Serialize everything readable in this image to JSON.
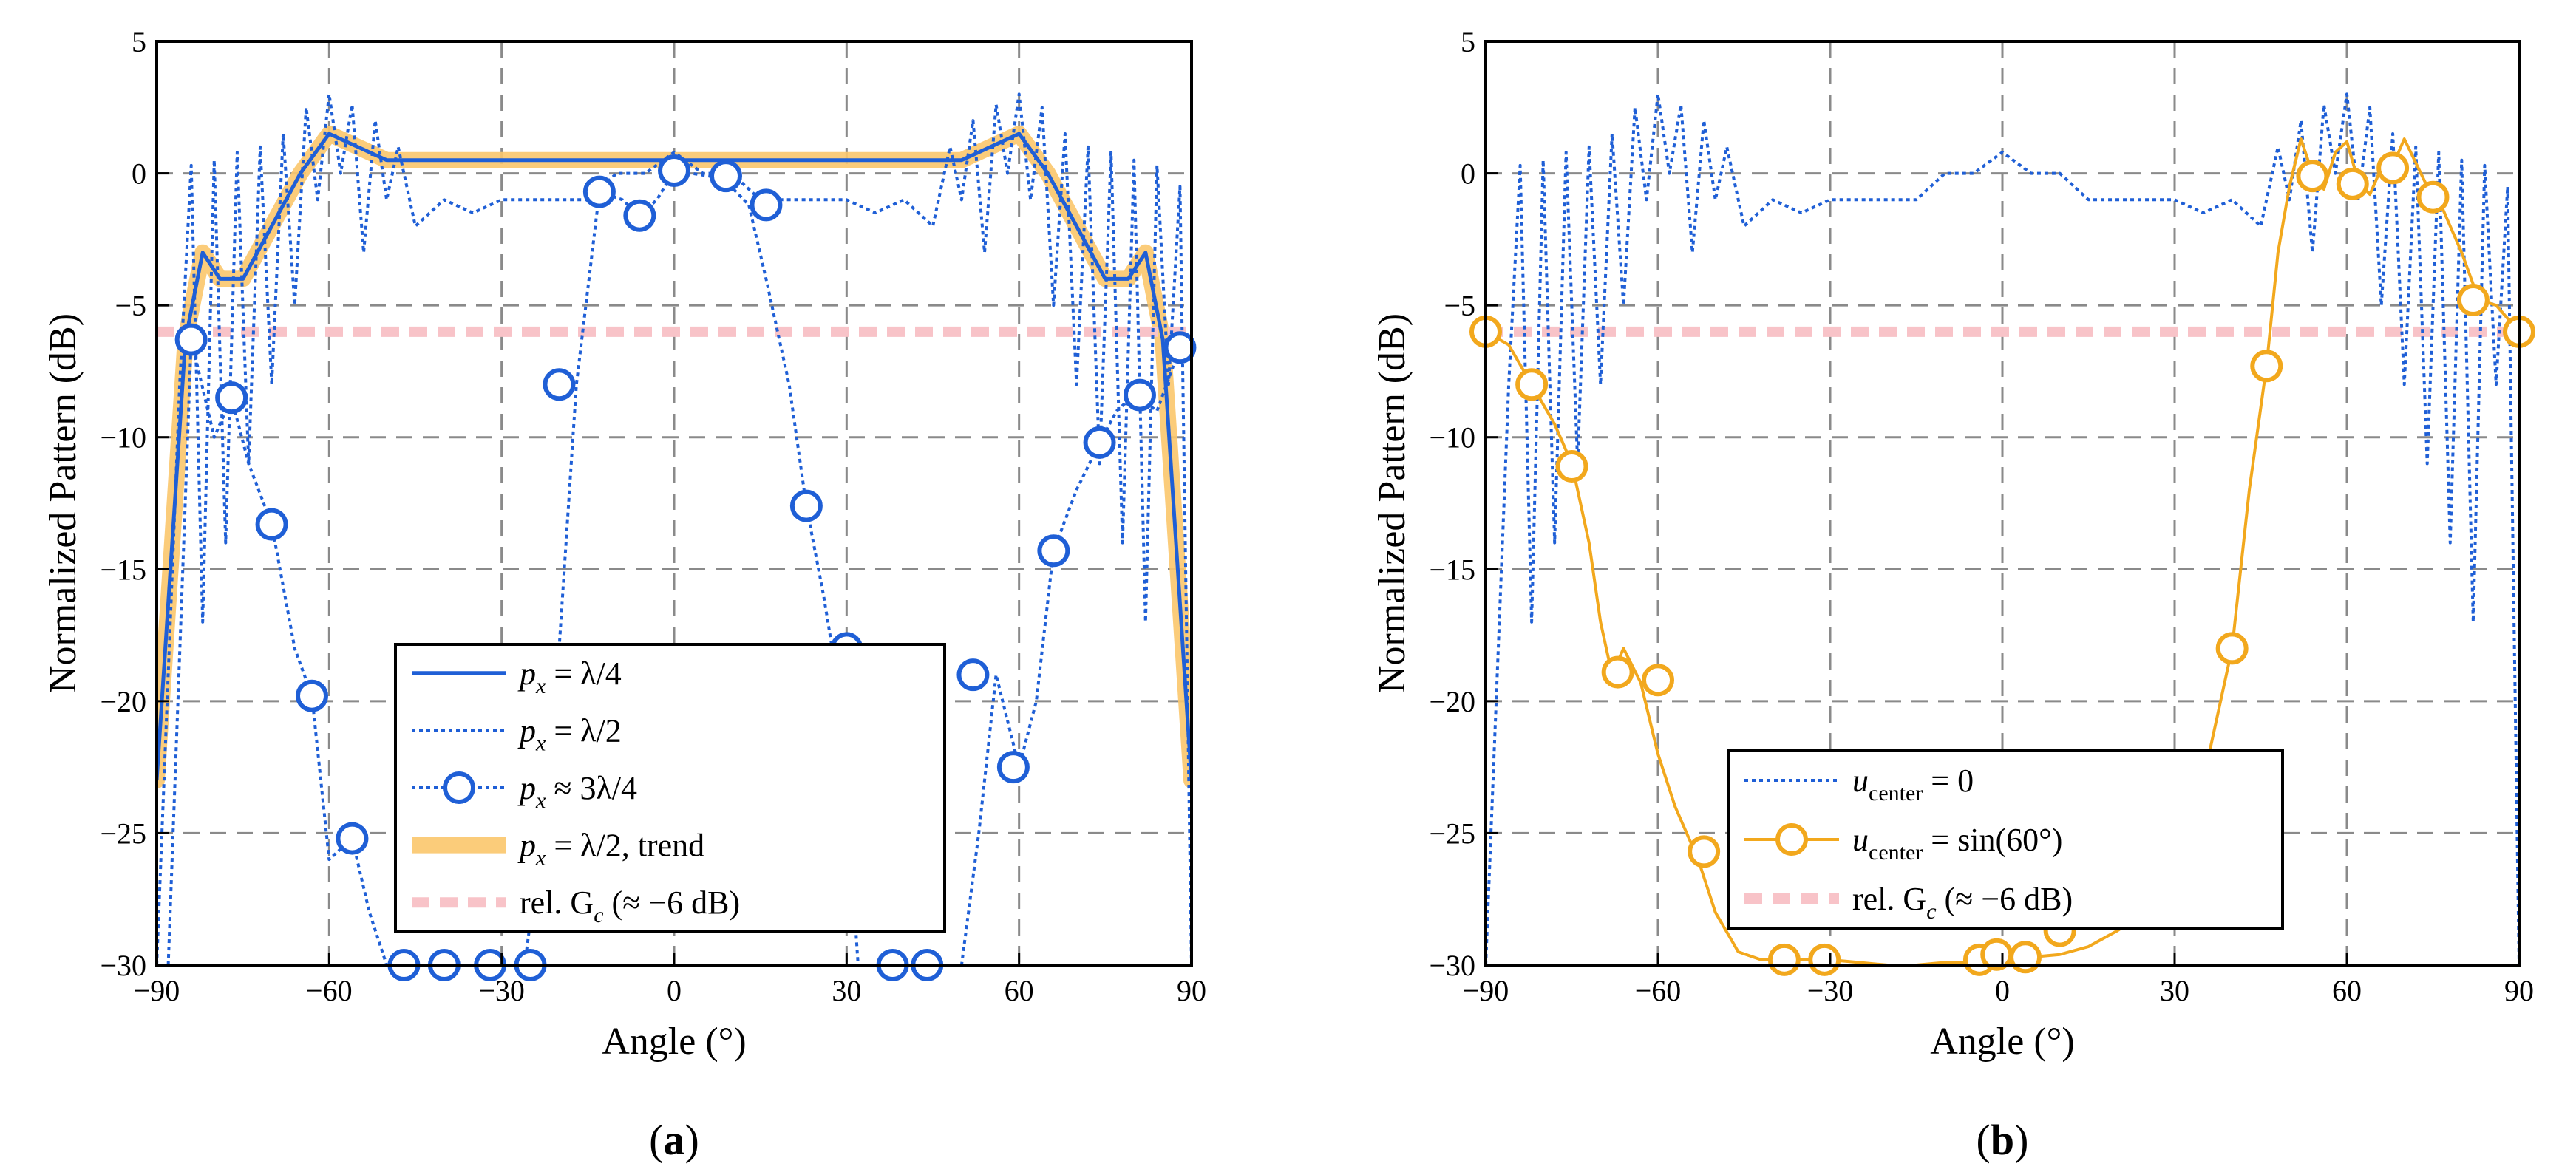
{
  "chart_data": [
    {
      "panel": "a",
      "caption": "(a)",
      "type": "line",
      "xlabel": "Angle (°)",
      "ylabel": "Normalized Pattern (dB)",
      "xlim": [
        -90,
        90
      ],
      "ylim": [
        -30,
        5
      ],
      "xticks": [
        -90,
        -60,
        -30,
        0,
        30,
        60,
        90
      ],
      "yticks": [
        -30,
        -25,
        -20,
        -15,
        -10,
        -5,
        0,
        5
      ],
      "xtick_labels": [
        "−90",
        "−60",
        "−30",
        "0",
        "30",
        "60",
        "90"
      ],
      "ytick_labels": [
        "−30",
        "−25",
        "−20",
        "−15",
        "−10",
        "−5",
        "0",
        "5"
      ],
      "grid": true,
      "legend_placement": "lower-center",
      "series": [
        {
          "name": "p_x = λ/4",
          "legend": {
            "pre": "p",
            "sub": "x",
            "post": " = λ/4"
          },
          "style": "solid",
          "color": "#1f5fd6",
          "x": [
            -90,
            -85,
            -82,
            -79,
            -75,
            -70,
            -65,
            -60,
            -55,
            -50,
            -40,
            -30,
            -20,
            -10,
            0,
            10,
            20,
            30,
            40,
            50,
            55,
            60,
            65,
            70,
            75,
            79,
            82,
            85,
            90
          ],
          "y": [
            -23,
            -6.3,
            -3,
            -4,
            -4,
            -2,
            0,
            1.5,
            1,
            0.5,
            0.5,
            0.5,
            0.5,
            0.5,
            0.5,
            0.5,
            0.5,
            0.5,
            0.5,
            0.5,
            1,
            1.5,
            0,
            -2,
            -4,
            -4,
            -3,
            -6.3,
            -23
          ]
        },
        {
          "name": "p_x = λ/2",
          "legend": {
            "pre": "p",
            "sub": "x",
            "post": " = λ/2"
          },
          "style": "dotted",
          "color": "#1f5fd6",
          "x": [
            -90,
            -86,
            -84,
            -82,
            -80,
            -78,
            -76,
            -74,
            -72,
            -70,
            -68,
            -66,
            -64,
            -62,
            -60,
            -58,
            -56,
            -54,
            -52,
            -50,
            -48,
            -45,
            -40,
            -35,
            -30,
            -25,
            -20,
            -15,
            -10,
            -5,
            0,
            5,
            10,
            15,
            20,
            25,
            30,
            35,
            40,
            45,
            48,
            50,
            52,
            54,
            56,
            58,
            60,
            62,
            64,
            66,
            68,
            70,
            72,
            74,
            76,
            78,
            80,
            82,
            84,
            86,
            88,
            90
          ],
          "y": [
            -30,
            -8,
            0.3,
            -17,
            0.5,
            -14,
            0.8,
            -11,
            1,
            -8,
            1.5,
            -5,
            2.5,
            -1,
            3,
            0,
            2.6,
            -3,
            2,
            -1,
            1,
            -2,
            -1,
            -1.5,
            -1,
            -1,
            -1,
            -1,
            0,
            0,
            0.8,
            0,
            0,
            -1,
            -1,
            -1,
            -1,
            -1.5,
            -1,
            -2,
            1,
            -1,
            2,
            -3,
            2.6,
            0,
            3,
            -1,
            2.5,
            -5,
            1.5,
            -8,
            1,
            -11,
            0.8,
            -14,
            0.5,
            -17,
            0.3,
            -8,
            -0.5,
            -30
          ]
        },
        {
          "name": "p_x ≈ 3λ/4",
          "legend": {
            "pre": "p",
            "sub": "x",
            "post": " ≈ 3λ/4"
          },
          "style": "dotted-circle",
          "color": "#1f5fd6",
          "x": [
            -88,
            -84,
            -80,
            -77,
            -74,
            -70,
            -66,
            -63,
            -60,
            -56,
            -53,
            -50,
            -47,
            -44,
            -40,
            -36,
            -32,
            -29,
            -26,
            -23,
            -20,
            -17,
            -13,
            -9,
            -6,
            -3,
            0,
            3,
            6,
            9,
            13,
            16,
            20,
            23,
            26,
            29,
            32,
            36,
            40,
            44,
            47,
            50,
            53,
            56,
            60,
            63,
            66,
            70,
            74,
            77,
            80,
            84,
            88
          ],
          "y": [
            -30,
            -6.3,
            -10,
            -8.5,
            -11,
            -13.3,
            -18,
            -19.8,
            -26,
            -25.2,
            -28,
            -30,
            -30,
            -30,
            -30,
            -30,
            -30,
            -30,
            -30,
            -25,
            -18,
            -8,
            -0.7,
            -1,
            -1.6,
            -1,
            0.1,
            0,
            -0.1,
            -0.3,
            -1.2,
            -4,
            -8,
            -12.6,
            -16,
            -20,
            -30,
            -30,
            -30,
            -30,
            -30,
            -30,
            -25,
            -19,
            -22.5,
            -20,
            -14.3,
            -12,
            -10.2,
            -9,
            -8.4,
            -9,
            -6.6
          ],
          "markers_x": [
            -84,
            -77,
            -70,
            -63,
            -56,
            -47,
            -40,
            -32,
            -25,
            -20,
            -13,
            -6,
            0,
            9,
            16,
            23,
            30,
            38,
            44,
            52,
            59,
            66,
            74,
            81,
            88
          ],
          "markers_y": [
            -6.3,
            -8.5,
            -13.3,
            -19.8,
            -25.2,
            -30,
            -30,
            -30,
            -30,
            -8,
            -0.7,
            -1.6,
            0.1,
            -0.1,
            -1.2,
            -12.6,
            -18,
            -30,
            -30,
            -19,
            -22.5,
            -14.3,
            -10.2,
            -8.4,
            -6.6
          ]
        },
        {
          "name": "p_x = λ/2, trend",
          "legend": {
            "pre": "p",
            "sub": "x",
            "post": " = λ/2, trend"
          },
          "style": "thick",
          "color": "#fbc66b",
          "x": [
            -90,
            -85,
            -82,
            -79,
            -75,
            -70,
            -65,
            -60,
            -55,
            -50,
            -40,
            -30,
            -20,
            -10,
            0,
            10,
            20,
            30,
            40,
            50,
            55,
            60,
            65,
            70,
            75,
            79,
            82,
            85,
            90
          ],
          "y": [
            -23,
            -6.3,
            -3,
            -4,
            -4,
            -2,
            0,
            1.5,
            1,
            0.5,
            0.5,
            0.5,
            0.5,
            0.5,
            0.5,
            0.5,
            0.5,
            0.5,
            0.5,
            0.5,
            1,
            1.5,
            0,
            -2,
            -4,
            -4,
            -3,
            -6.3,
            -23
          ]
        },
        {
          "name": "rel. G_c (≈ −6 dB)",
          "legend": {
            "pre": "rel. G",
            "sub": "c",
            "post": " (≈ −6 dB)"
          },
          "style": "dashed-thick",
          "color": "#f8c3c8",
          "x": [
            -90,
            90
          ],
          "y": [
            -6,
            -6
          ]
        }
      ]
    },
    {
      "panel": "b",
      "caption": "(b)",
      "type": "line",
      "xlabel": "Angle (°)",
      "ylabel": "Normalized Pattern (dB)",
      "xlim": [
        -90,
        90
      ],
      "ylim": [
        -30,
        5
      ],
      "xticks": [
        -90,
        -60,
        -30,
        0,
        30,
        60,
        90
      ],
      "yticks": [
        -30,
        -25,
        -20,
        -15,
        -10,
        -5,
        0,
        5
      ],
      "xtick_labels": [
        "−90",
        "−60",
        "−30",
        "0",
        "30",
        "60",
        "90"
      ],
      "ytick_labels": [
        "−30",
        "−25",
        "−20",
        "−15",
        "−10",
        "−5",
        "0",
        "5"
      ],
      "grid": true,
      "legend_placement": "lower-center",
      "series": [
        {
          "name": "u_center = 0",
          "legend": {
            "pre": "u",
            "sub": "center",
            "post": " = 0"
          },
          "style": "dotted",
          "color": "#1f5fd6",
          "x": [
            -90,
            -86,
            -84,
            -82,
            -80,
            -78,
            -76,
            -74,
            -72,
            -70,
            -68,
            -66,
            -64,
            -62,
            -60,
            -58,
            -56,
            -54,
            -52,
            -50,
            -48,
            -45,
            -40,
            -35,
            -30,
            -25,
            -20,
            -15,
            -10,
            -5,
            0,
            5,
            10,
            15,
            20,
            25,
            30,
            35,
            40,
            45,
            48,
            50,
            52,
            54,
            56,
            58,
            60,
            62,
            64,
            66,
            68,
            70,
            72,
            74,
            76,
            78,
            80,
            82,
            84,
            86,
            88,
            90
          ],
          "y": [
            -30,
            -8,
            0.3,
            -17,
            0.5,
            -14,
            0.8,
            -11,
            1,
            -8,
            1.5,
            -5,
            2.5,
            -1,
            3,
            0,
            2.6,
            -3,
            2,
            -1,
            1,
            -2,
            -1,
            -1.5,
            -1,
            -1,
            -1,
            -1,
            0,
            0,
            0.8,
            0,
            0,
            -1,
            -1,
            -1,
            -1,
            -1.5,
            -1,
            -2,
            1,
            -1,
            2,
            -3,
            2.6,
            0,
            3,
            -1,
            2.5,
            -5,
            1.5,
            -8,
            1,
            -11,
            0.8,
            -14,
            0.5,
            -17,
            0.3,
            -8,
            -0.5,
            -30
          ]
        },
        {
          "name": "u_center = sin(60°)",
          "legend": {
            "pre": "u",
            "sub": "center",
            "post": " = sin(60°)"
          },
          "style": "solid-circle",
          "color": "#f2a81d",
          "x": [
            -90,
            -86,
            -82,
            -78,
            -75,
            -72,
            -70,
            -68,
            -66,
            -63,
            -60,
            -57,
            -53,
            -50,
            -46,
            -42,
            -38,
            -34,
            -30,
            -25,
            -20,
            -15,
            -10,
            -5,
            0,
            5,
            10,
            15,
            20,
            25,
            30,
            33,
            36,
            40,
            43,
            46,
            48,
            50,
            52,
            54,
            56,
            58,
            60,
            62,
            64,
            66,
            68,
            70,
            72,
            74,
            76,
            78,
            80,
            83,
            86,
            90
          ],
          "y": [
            -6,
            -6.5,
            -8,
            -9.5,
            -11,
            -14,
            -17,
            -19,
            -18,
            -19.3,
            -22,
            -24,
            -26,
            -28,
            -29.5,
            -29.8,
            -29.8,
            -29.8,
            -29.8,
            -29.9,
            -30,
            -30,
            -29.9,
            -29.9,
            -29.8,
            -29.7,
            -29.6,
            -29.3,
            -28.7,
            -28,
            -27,
            -25,
            -22,
            -18,
            -12,
            -7.3,
            -3,
            -0.5,
            1.3,
            0,
            -0.6,
            0.8,
            1.2,
            -0.3,
            -0.8,
            0.2,
            0.3,
            1.3,
            0.4,
            -0.5,
            -1,
            -2,
            -3,
            -4.8,
            -5,
            -6
          ],
          "markers_x": [
            -90,
            -82,
            -75,
            -67,
            -60,
            -52,
            -38,
            -31,
            -4,
            -1,
            4,
            10,
            16,
            24,
            32,
            40,
            46,
            54,
            61,
            68,
            75,
            82,
            90
          ],
          "markers_y": [
            -6,
            -8,
            -11.1,
            -18.9,
            -19.2,
            -25.7,
            -29.8,
            -29.8,
            -29.8,
            -29.6,
            -29.7,
            -28.7,
            -27.6,
            -26,
            -24.5,
            -18,
            -7.3,
            -0.1,
            -0.4,
            0.2,
            -0.9,
            -4.8,
            -6
          ]
        },
        {
          "name": "rel. G_c (≈ −6 dB)",
          "legend": {
            "pre": "rel. G",
            "sub": "c",
            "post": " (≈ −6 dB)"
          },
          "style": "dashed-thick",
          "color": "#f8c3c8",
          "x": [
            -90,
            90
          ],
          "y": [
            -6,
            -6
          ]
        }
      ]
    }
  ]
}
